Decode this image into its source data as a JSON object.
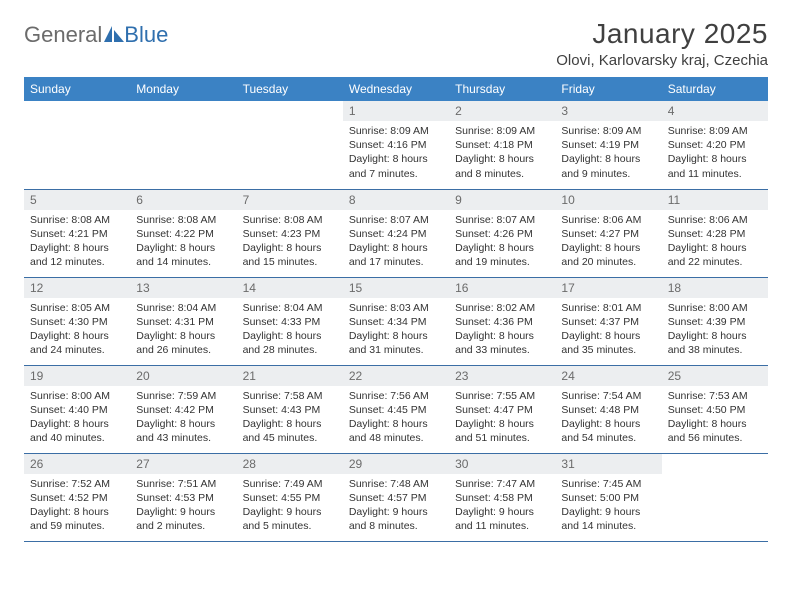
{
  "brand": {
    "word1": "General",
    "word2": "Blue"
  },
  "title": "January 2025",
  "location": "Olovi, Karlovarsky kraj, Czechia",
  "colors": {
    "header_bg": "#3b82c4",
    "header_fg": "#ffffff",
    "daynum_bg": "#eceef0",
    "daynum_fg": "#6b6b6b",
    "border": "#3b6ea5",
    "text": "#333333",
    "brand_gray": "#6b6b6b",
    "brand_blue": "#2f6fae"
  },
  "day_names": [
    "Sunday",
    "Monday",
    "Tuesday",
    "Wednesday",
    "Thursday",
    "Friday",
    "Saturday"
  ],
  "days": {
    "1": {
      "sunrise": "8:09 AM",
      "sunset": "4:16 PM",
      "daylight": "8 hours and 7 minutes."
    },
    "2": {
      "sunrise": "8:09 AM",
      "sunset": "4:18 PM",
      "daylight": "8 hours and 8 minutes."
    },
    "3": {
      "sunrise": "8:09 AM",
      "sunset": "4:19 PM",
      "daylight": "8 hours and 9 minutes."
    },
    "4": {
      "sunrise": "8:09 AM",
      "sunset": "4:20 PM",
      "daylight": "8 hours and 11 minutes."
    },
    "5": {
      "sunrise": "8:08 AM",
      "sunset": "4:21 PM",
      "daylight": "8 hours and 12 minutes."
    },
    "6": {
      "sunrise": "8:08 AM",
      "sunset": "4:22 PM",
      "daylight": "8 hours and 14 minutes."
    },
    "7": {
      "sunrise": "8:08 AM",
      "sunset": "4:23 PM",
      "daylight": "8 hours and 15 minutes."
    },
    "8": {
      "sunrise": "8:07 AM",
      "sunset": "4:24 PM",
      "daylight": "8 hours and 17 minutes."
    },
    "9": {
      "sunrise": "8:07 AM",
      "sunset": "4:26 PM",
      "daylight": "8 hours and 19 minutes."
    },
    "10": {
      "sunrise": "8:06 AM",
      "sunset": "4:27 PM",
      "daylight": "8 hours and 20 minutes."
    },
    "11": {
      "sunrise": "8:06 AM",
      "sunset": "4:28 PM",
      "daylight": "8 hours and 22 minutes."
    },
    "12": {
      "sunrise": "8:05 AM",
      "sunset": "4:30 PM",
      "daylight": "8 hours and 24 minutes."
    },
    "13": {
      "sunrise": "8:04 AM",
      "sunset": "4:31 PM",
      "daylight": "8 hours and 26 minutes."
    },
    "14": {
      "sunrise": "8:04 AM",
      "sunset": "4:33 PM",
      "daylight": "8 hours and 28 minutes."
    },
    "15": {
      "sunrise": "8:03 AM",
      "sunset": "4:34 PM",
      "daylight": "8 hours and 31 minutes."
    },
    "16": {
      "sunrise": "8:02 AM",
      "sunset": "4:36 PM",
      "daylight": "8 hours and 33 minutes."
    },
    "17": {
      "sunrise": "8:01 AM",
      "sunset": "4:37 PM",
      "daylight": "8 hours and 35 minutes."
    },
    "18": {
      "sunrise": "8:00 AM",
      "sunset": "4:39 PM",
      "daylight": "8 hours and 38 minutes."
    },
    "19": {
      "sunrise": "8:00 AM",
      "sunset": "4:40 PM",
      "daylight": "8 hours and 40 minutes."
    },
    "20": {
      "sunrise": "7:59 AM",
      "sunset": "4:42 PM",
      "daylight": "8 hours and 43 minutes."
    },
    "21": {
      "sunrise": "7:58 AM",
      "sunset": "4:43 PM",
      "daylight": "8 hours and 45 minutes."
    },
    "22": {
      "sunrise": "7:56 AM",
      "sunset": "4:45 PM",
      "daylight": "8 hours and 48 minutes."
    },
    "23": {
      "sunrise": "7:55 AM",
      "sunset": "4:47 PM",
      "daylight": "8 hours and 51 minutes."
    },
    "24": {
      "sunrise": "7:54 AM",
      "sunset": "4:48 PM",
      "daylight": "8 hours and 54 minutes."
    },
    "25": {
      "sunrise": "7:53 AM",
      "sunset": "4:50 PM",
      "daylight": "8 hours and 56 minutes."
    },
    "26": {
      "sunrise": "7:52 AM",
      "sunset": "4:52 PM",
      "daylight": "8 hours and 59 minutes."
    },
    "27": {
      "sunrise": "7:51 AM",
      "sunset": "4:53 PM",
      "daylight": "9 hours and 2 minutes."
    },
    "28": {
      "sunrise": "7:49 AM",
      "sunset": "4:55 PM",
      "daylight": "9 hours and 5 minutes."
    },
    "29": {
      "sunrise": "7:48 AM",
      "sunset": "4:57 PM",
      "daylight": "9 hours and 8 minutes."
    },
    "30": {
      "sunrise": "7:47 AM",
      "sunset": "4:58 PM",
      "daylight": "9 hours and 11 minutes."
    },
    "31": {
      "sunrise": "7:45 AM",
      "sunset": "5:00 PM",
      "daylight": "9 hours and 14 minutes."
    }
  },
  "layout": {
    "leading_blanks": 3,
    "num_days": 31,
    "trailing_blanks": 1
  },
  "labels": {
    "sunrise_prefix": "Sunrise: ",
    "sunset_prefix": "Sunset: ",
    "daylight_prefix": "Daylight: "
  }
}
